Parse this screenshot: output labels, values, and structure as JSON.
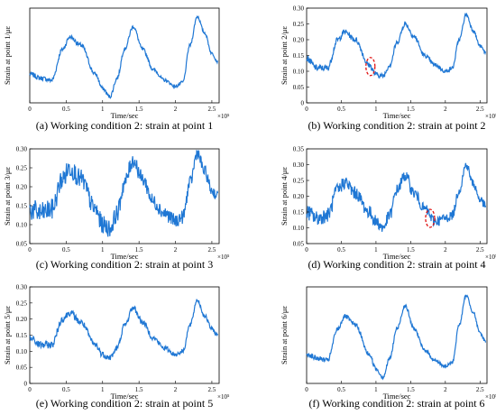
{
  "chart_data": [
    {
      "type": "line",
      "panel_caption": "(a) Working condition 2: strain at point 1",
      "xlabel": "Time/sec",
      "ylabel": "Strain at point 1/με",
      "x_multiplier": "×10⁵",
      "xlim": [
        0,
        2.6
      ],
      "ylim": [
        0.03,
        0.26
      ],
      "xticks": [
        "0",
        "0.5",
        "1",
        "1.5",
        "2",
        "2.5"
      ],
      "yticks": [],
      "color": "#1f77d4",
      "noise": 0.006,
      "grid": false,
      "series": [
        {
          "x": [
            0,
            0.15,
            0.3,
            0.45,
            0.55,
            0.7,
            0.9,
            1.0,
            1.1,
            1.2,
            1.3,
            1.42,
            1.55,
            1.7,
            1.85,
            2.0,
            2.1,
            2.2,
            2.3,
            2.4,
            2.5,
            2.58
          ],
          "y": [
            0.1,
            0.09,
            0.085,
            0.16,
            0.19,
            0.17,
            0.1,
            0.065,
            0.045,
            0.09,
            0.16,
            0.215,
            0.16,
            0.11,
            0.085,
            0.07,
            0.08,
            0.17,
            0.24,
            0.2,
            0.15,
            0.13
          ]
        }
      ],
      "annotation": null
    },
    {
      "type": "line",
      "panel_caption": "(b) Working condition 2: strain at point 2",
      "xlabel": "Time/sec",
      "ylabel": "Strain at point 2/με",
      "x_multiplier": "×10⁵",
      "xlim": [
        0,
        2.6
      ],
      "ylim": [
        0,
        0.3
      ],
      "xticks": [
        "0",
        "0.5",
        "1",
        "1.5",
        "2",
        "2.5"
      ],
      "yticks": [
        "0",
        "0.05",
        "0.10",
        "0.15",
        "0.20",
        "0.25",
        "0.30"
      ],
      "color": "#1f77d4",
      "noise": 0.01,
      "grid": false,
      "series": [
        {
          "x": [
            0,
            0.15,
            0.3,
            0.45,
            0.55,
            0.7,
            0.9,
            1.0,
            1.1,
            1.2,
            1.3,
            1.42,
            1.55,
            1.7,
            1.85,
            2.0,
            2.1,
            2.2,
            2.3,
            2.4,
            2.5,
            2.58
          ],
          "y": [
            0.14,
            0.11,
            0.11,
            0.2,
            0.225,
            0.2,
            0.12,
            0.09,
            0.085,
            0.12,
            0.19,
            0.25,
            0.21,
            0.15,
            0.12,
            0.1,
            0.11,
            0.2,
            0.28,
            0.23,
            0.18,
            0.16
          ]
        }
      ],
      "annotation": {
        "x": 0.92,
        "y": 0.115
      }
    },
    {
      "type": "line",
      "panel_caption": "(c) Working condition 2: strain at point 3",
      "xlabel": "Time/sec",
      "ylabel": "Strain at point 3/με",
      "x_multiplier": "×10⁵",
      "xlim": [
        0,
        2.6
      ],
      "ylim": [
        0.05,
        0.3
      ],
      "xticks": [
        "0",
        "0.5",
        "1",
        "1.5",
        "2",
        "2.5"
      ],
      "yticks": [
        "0.05",
        "0.10",
        "0.15",
        "0.20",
        "0.25",
        "0.30"
      ],
      "color": "#1f77d4",
      "noise": 0.03,
      "grid": false,
      "series": [
        {
          "x": [
            0,
            0.15,
            0.3,
            0.45,
            0.55,
            0.7,
            0.9,
            1.0,
            1.1,
            1.2,
            1.3,
            1.42,
            1.55,
            1.7,
            1.85,
            2.0,
            2.1,
            2.2,
            2.3,
            2.4,
            2.5,
            2.58
          ],
          "y": [
            0.14,
            0.13,
            0.14,
            0.22,
            0.25,
            0.22,
            0.14,
            0.1,
            0.09,
            0.13,
            0.21,
            0.27,
            0.22,
            0.16,
            0.13,
            0.11,
            0.12,
            0.21,
            0.29,
            0.24,
            0.19,
            0.175
          ]
        }
      ],
      "annotation": null
    },
    {
      "type": "line",
      "panel_caption": "(d) Working condition 2: strain at point 4",
      "xlabel": "Time/sec",
      "ylabel": "Strain at point 4/με",
      "x_multiplier": "×10⁵",
      "xlim": [
        0,
        2.6
      ],
      "ylim": [
        0.05,
        0.35
      ],
      "xticks": [
        "0",
        "0.5",
        "1",
        "1.5",
        "2",
        "2.5"
      ],
      "yticks": [
        "0.05",
        "0.10",
        "0.15",
        "0.20",
        "0.25",
        "0.30",
        "0.35"
      ],
      "color": "#1f77d4",
      "noise": 0.025,
      "grid": false,
      "series": [
        {
          "x": [
            0,
            0.15,
            0.3,
            0.45,
            0.55,
            0.7,
            0.9,
            1.0,
            1.1,
            1.2,
            1.3,
            1.42,
            1.55,
            1.7,
            1.85,
            2.0,
            2.1,
            2.2,
            2.3,
            2.4,
            2.5,
            2.58
          ],
          "y": [
            0.15,
            0.13,
            0.14,
            0.22,
            0.245,
            0.21,
            0.15,
            0.12,
            0.1,
            0.14,
            0.22,
            0.265,
            0.21,
            0.16,
            0.12,
            0.13,
            0.14,
            0.22,
            0.3,
            0.24,
            0.19,
            0.17
          ]
        }
      ],
      "annotation": {
        "x": 1.78,
        "y": 0.13
      }
    },
    {
      "type": "line",
      "panel_caption": "(e) Working condition 2: strain at point 5",
      "xlabel": "Time/sec",
      "ylabel": "Strain at point 5/με",
      "x_multiplier": "×10⁵",
      "xlim": [
        0,
        2.6
      ],
      "ylim": [
        0,
        0.3
      ],
      "xticks": [
        "0",
        "0.5",
        "1",
        "1.5",
        "2",
        "2.5"
      ],
      "yticks": [
        "0",
        "0.05",
        "0.10",
        "0.15",
        "0.20",
        "0.25",
        "0.30"
      ],
      "color": "#1f77d4",
      "noise": 0.012,
      "grid": false,
      "series": [
        {
          "x": [
            0,
            0.15,
            0.3,
            0.45,
            0.55,
            0.7,
            0.9,
            1.0,
            1.1,
            1.2,
            1.3,
            1.42,
            1.55,
            1.7,
            1.85,
            2.0,
            2.1,
            2.2,
            2.3,
            2.4,
            2.5,
            2.58
          ],
          "y": [
            0.14,
            0.12,
            0.12,
            0.2,
            0.22,
            0.19,
            0.12,
            0.09,
            0.08,
            0.11,
            0.18,
            0.235,
            0.19,
            0.14,
            0.11,
            0.09,
            0.1,
            0.18,
            0.26,
            0.21,
            0.17,
            0.15
          ]
        }
      ],
      "annotation": null
    },
    {
      "type": "line",
      "panel_caption": "(f) Working condition 2: strain at point 6",
      "xlabel": "Time/sec",
      "ylabel": "Strain at point 6/με",
      "x_multiplier": "×10⁵",
      "xlim": [
        0,
        2.6
      ],
      "ylim": [
        0.03,
        0.26
      ],
      "xticks": [
        "0",
        "0.5",
        "1",
        "1.5",
        "2",
        "2.5"
      ],
      "yticks": [],
      "color": "#1f77d4",
      "noise": 0.006,
      "grid": false,
      "series": [
        {
          "x": [
            0,
            0.15,
            0.3,
            0.45,
            0.55,
            0.7,
            0.9,
            1.0,
            1.1,
            1.2,
            1.3,
            1.42,
            1.55,
            1.7,
            1.85,
            2.0,
            2.1,
            2.2,
            2.3,
            2.4,
            2.5,
            2.58
          ],
          "y": [
            0.1,
            0.09,
            0.085,
            0.16,
            0.19,
            0.17,
            0.1,
            0.065,
            0.045,
            0.09,
            0.16,
            0.215,
            0.16,
            0.11,
            0.085,
            0.07,
            0.08,
            0.17,
            0.24,
            0.2,
            0.15,
            0.13
          ]
        }
      ],
      "annotation": null
    }
  ]
}
